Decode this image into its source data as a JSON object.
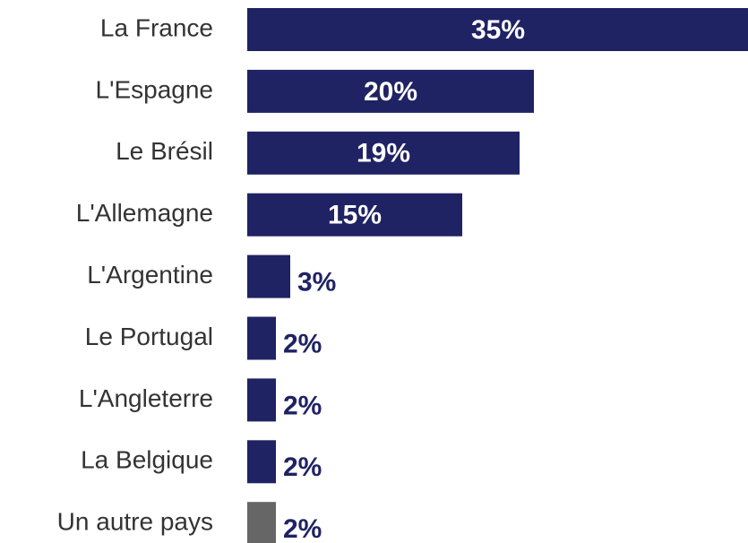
{
  "chart_data": {
    "type": "bar",
    "orientation": "horizontal",
    "categories": [
      "La France",
      "L'Espagne",
      "Le Brésil",
      "L'Allemagne",
      "L'Argentine",
      "Le Portugal",
      "L'Angleterre",
      "La Belgique",
      "Un autre pays"
    ],
    "values": [
      35,
      20,
      19,
      15,
      3,
      2,
      2,
      2,
      2
    ],
    "value_labels": [
      "35%",
      "20%",
      "19%",
      "15%",
      "3%",
      "2%",
      "2%",
      "2%",
      "2%"
    ],
    "colors": [
      "#1f2263",
      "#1f2263",
      "#1f2263",
      "#1f2263",
      "#1f2263",
      "#1f2263",
      "#1f2263",
      "#1f2263",
      "#666666"
    ]
  }
}
